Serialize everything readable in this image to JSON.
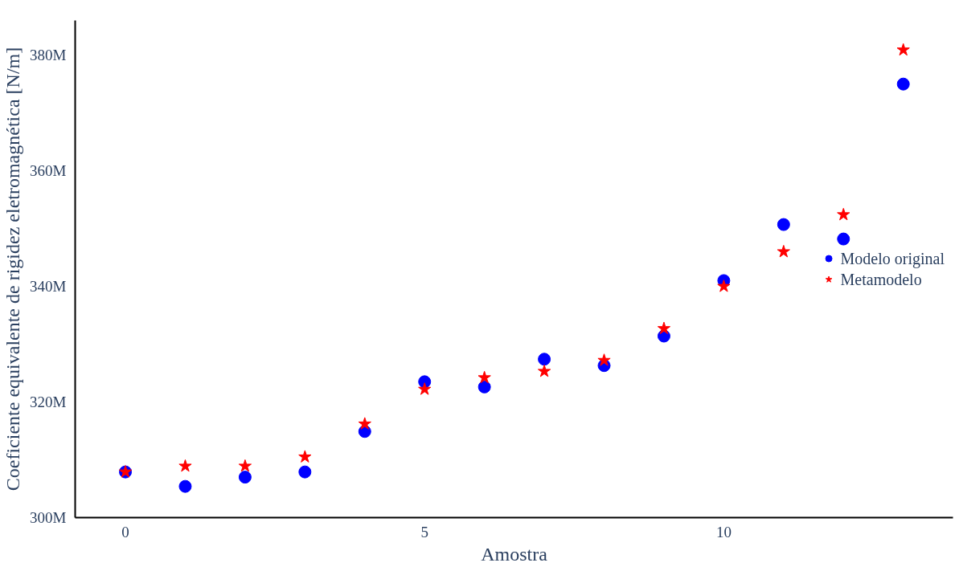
{
  "chart_data": {
    "type": "scatter",
    "xlabel": "Amostra",
    "ylabel": "Coeficiente equivalente de rigidez eletromagnética [N/m]",
    "x": [
      0,
      1,
      2,
      3,
      4,
      5,
      6,
      7,
      8,
      9,
      10,
      11,
      12,
      13
    ],
    "series": [
      {
        "name": "Modelo original",
        "color": "#0000ff",
        "marker": "circle",
        "values": [
          307900000,
          305400000,
          307000000,
          307900000,
          314900000,
          323500000,
          322600000,
          327400000,
          326300000,
          331400000,
          341000000,
          350700000,
          348200000,
          375000000
        ]
      },
      {
        "name": "Metamodelo",
        "color": "#ff0000",
        "marker": "star",
        "values": [
          307900000,
          308900000,
          308900000,
          310500000,
          316200000,
          322200000,
          324200000,
          325300000,
          327200000,
          332700000,
          340000000,
          346000000,
          352400000,
          380900000
        ]
      }
    ],
    "xlim": [
      -0.84,
      13.83
    ],
    "ylim": [
      300000000,
      386000000
    ],
    "xticks": [
      0,
      5,
      10
    ],
    "yticks": [
      {
        "value": 300000000,
        "label": "300M"
      },
      {
        "value": 320000000,
        "label": "320M"
      },
      {
        "value": 340000000,
        "label": "340M"
      },
      {
        "value": 360000000,
        "label": "360M"
      },
      {
        "value": 380000000,
        "label": "380M"
      }
    ],
    "grid": false,
    "legend": "right"
  }
}
